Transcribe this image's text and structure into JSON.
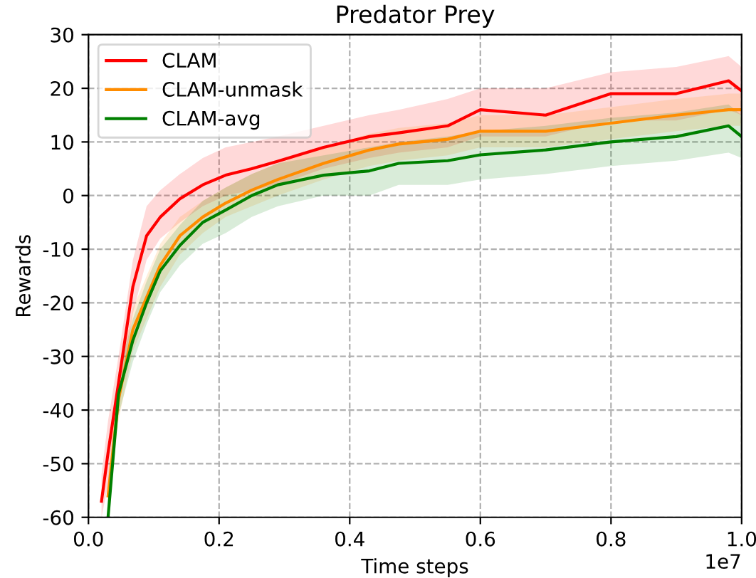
{
  "chart_data": {
    "type": "line",
    "title": "Predator Prey",
    "xlabel": "Time steps",
    "ylabel": "Rewards",
    "annotations": [
      "1e7"
    ],
    "x": [
      0.02,
      0.03,
      0.046,
      0.068,
      0.089,
      0.11,
      0.14,
      0.175,
      0.21,
      0.25,
      0.29,
      0.36,
      0.43,
      0.475,
      0.55,
      0.6,
      0.7,
      0.8,
      0.9,
      0.98,
      1.0
    ],
    "series": [
      {
        "name": "CLAM",
        "color": "#ff0000",
        "values": [
          -57,
          -48,
          -35,
          -17,
          -7.5,
          -4,
          -0.6,
          2,
          3.8,
          5,
          6.4,
          9,
          11,
          11.7,
          13,
          16,
          15,
          19,
          19,
          21.4,
          19.5
        ],
        "lower": [
          -60,
          -54,
          -40,
          -22,
          -12,
          -8,
          -5,
          -2,
          0,
          1,
          2,
          5,
          7,
          8,
          9,
          11,
          11,
          14,
          14,
          16,
          15
        ],
        "upper": [
          -52,
          -42,
          -30,
          -12,
          -2,
          1,
          4,
          7,
          9,
          10,
          11,
          13,
          15,
          16,
          18,
          20,
          20,
          23,
          24,
          26,
          24
        ]
      },
      {
        "name": "CLAM-unmask",
        "color": "#ff8c00",
        "values": [
          null,
          -56,
          -38,
          -25,
          -19,
          -13,
          -7.5,
          -4,
          -1.4,
          1,
          3,
          6,
          8.5,
          9.6,
          10.5,
          12,
          12,
          13.5,
          15,
          16,
          16
        ],
        "lower": [
          null,
          -60,
          -42,
          -29,
          -23,
          -17,
          -11,
          -7,
          -4,
          -2,
          0,
          3,
          5.5,
          6.5,
          7.5,
          9,
          9,
          10.5,
          12,
          13,
          13
        ],
        "upper": [
          null,
          -52,
          -34,
          -21,
          -15,
          -9,
          -4,
          -1,
          1.5,
          4,
          6,
          9,
          11.5,
          12.6,
          13.5,
          15,
          15,
          16.5,
          18,
          19,
          19
        ]
      },
      {
        "name": "CLAM-avg",
        "color": "#008000",
        "values": [
          null,
          -60,
          -37,
          -27,
          -20,
          -14,
          -9.3,
          -5,
          -2.7,
          0,
          2,
          3.8,
          4.6,
          6,
          6.5,
          7.6,
          8.5,
          10,
          11,
          13,
          11
        ],
        "lower": [
          null,
          -60,
          -41,
          -31,
          -24,
          -18,
          -13,
          -9,
          -7,
          -4,
          -2,
          0,
          0,
          2,
          2,
          3,
          4,
          5.5,
          6.5,
          8,
          7
        ],
        "upper": [
          null,
          -56,
          -33,
          -23,
          -16,
          -10,
          -5.5,
          -1,
          1.5,
          4,
          6,
          7.5,
          9,
          10,
          11,
          12,
          13,
          14.5,
          15.5,
          17,
          15
        ]
      }
    ],
    "xlim": [
      0,
      1.0
    ],
    "xticks": [
      {
        "value": 0,
        "label": "0.0"
      },
      0.2,
      0.4,
      0.6,
      0.8,
      {
        "value": 1.0,
        "label": "1.0"
      }
    ],
    "ylim": [
      -60,
      30
    ],
    "yticks": [
      -60,
      -50,
      -40,
      -30,
      -20,
      -10,
      0,
      10,
      20,
      30
    ],
    "grid": true,
    "legend": "top left",
    "line_style": "solid",
    "marker": "none"
  }
}
